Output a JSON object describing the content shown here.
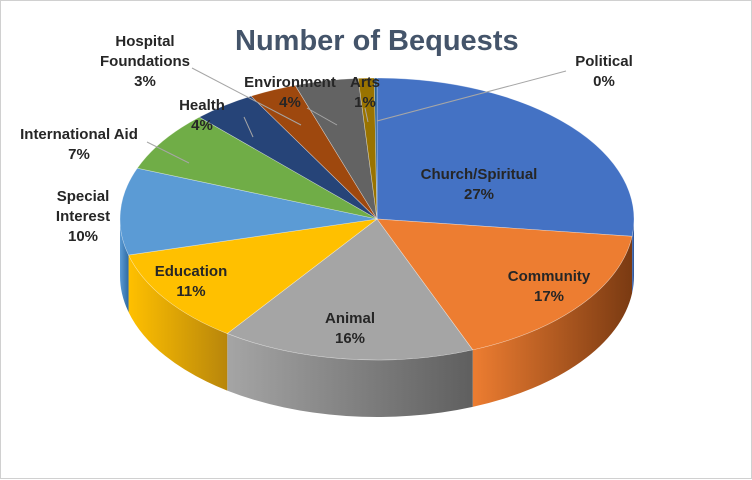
{
  "chart_data": {
    "type": "pie",
    "title": "Number of Bequests",
    "slices": [
      {
        "label": "Church/Spiritual",
        "value": 27,
        "value_label": "27%",
        "color": "#4472c4",
        "side": "#2f528f"
      },
      {
        "label": "Community",
        "value": 17,
        "value_label": "17%",
        "color": "#ed7d31",
        "side": "#7a3a12"
      },
      {
        "label": "Animal",
        "value": 16,
        "value_label": "16%",
        "color": "#a5a5a5",
        "side": "#5f5f5f"
      },
      {
        "label": "Education",
        "value": 11,
        "value_label": "11%",
        "color": "#ffc000",
        "side": "#b8860b"
      },
      {
        "label": "Special Interest",
        "value": 10,
        "value_label": "10%",
        "color": "#5b9bd5",
        "side": "#2e6aa3"
      },
      {
        "label": "International Aid",
        "value": 7,
        "value_label": "7%",
        "color": "#70ad47",
        "side": "#4a7a2c"
      },
      {
        "label": "Health",
        "value": 4,
        "value_label": "4%",
        "color": "#264478",
        "side": "#16294a"
      },
      {
        "label": "Hospital Foundations",
        "value": 3,
        "value_label": "3%",
        "color": "#9e480e",
        "side": "#5e2a08"
      },
      {
        "label": "Environment",
        "value": 4,
        "value_label": "4%",
        "color": "#636363",
        "side": "#3d3d3d"
      },
      {
        "label": "Arts",
        "value": 1,
        "value_label": "1%",
        "color": "#997300",
        "side": "#5c4500"
      },
      {
        "label": "Political",
        "value": 0,
        "value_label": "0%",
        "color": "#255e91",
        "side": "#163a5a"
      }
    ]
  }
}
